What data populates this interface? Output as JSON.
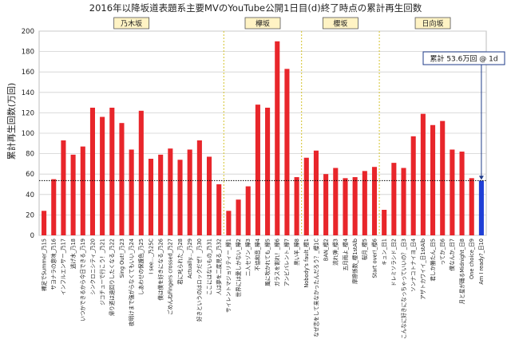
{
  "chart_data": {
    "type": "bar",
    "title": "2016年以降坂道表題系主要MVのYouTube公開1日目(d)終了時点の累計再生回数",
    "ylabel": "累計再生回数(万回)",
    "ylim": [
      0,
      200
    ],
    "yticks": [
      0,
      20,
      40,
      60,
      80,
      100,
      120,
      140,
      160,
      180,
      200
    ],
    "grid": true,
    "categories": [
      "裸足でSummer_乃15",
      "サヨナラの意味_乃16",
      "インフルエンサー_乃17",
      "逃げ水_乃18",
      "いつかできるから今日できる_乃19",
      "シンクロニシティ_乃20",
      "ジコチューで行こう！_乃21",
      "帰り道は遠回りしたくなる_乃22",
      "Sing Out!_乃23",
      "夜明けまで強がらなくてもいい_乃24",
      "しあわせの保護色_乃25",
      "I see..._乃25C",
      "僕は僕を好きになる_乃26",
      "ごめんねFingers crossed_乃27",
      "君に叱られた_乃28",
      "Actually..._乃29",
      "好きというのはロックだぜ！_乃30",
      "ここにはないもの_乃31",
      "人は夢を二度見る_乃32",
      "サイレントマジョリティー_欅1",
      "世界には愛しかない_欅2",
      "二人セゾン_欅3",
      "不協和音_欅4",
      "風に吹かれても_欅5",
      "ガラスを割れ！_欅6",
      "アンビバレント_欅7",
      "黒い羊_欅8",
      "Nobody's fault_櫻1",
      "なぜ恋をして来なかったんだろう？_櫻1C",
      "BAN_櫻2",
      "流れ弾_櫻3",
      "五月雨よ_櫻4",
      "摩擦係数_櫻1stAlb",
      "桜月_櫻5",
      "Start over!_櫻6",
      "キュン_日1",
      "ドレミソラシド_日2",
      "こんなに好きになっちゃっていいの？_日3",
      "ソンナコトナイヨ_日4",
      "アザトカワイイ_日1stAlb",
      "君しか勝たん_日5",
      "ってか_日6",
      "僕なんか_日7",
      "月と星が踊るMidnight_日8",
      "One choice_日9",
      "Am I ready?_日10"
    ],
    "values": [
      24,
      55,
      93,
      79,
      87,
      125,
      116,
      125,
      110,
      84,
      122,
      75,
      79,
      85,
      74,
      84,
      93,
      77,
      50,
      24,
      35,
      48,
      128,
      125,
      190,
      163,
      57,
      76,
      83,
      60,
      66,
      56,
      57,
      63,
      67,
      25,
      71,
      66,
      97,
      119,
      108,
      112,
      84,
      82,
      56,
      53.6
    ],
    "highlight_index": 45,
    "colors": {
      "bar": "#e8262b",
      "highlight": "#1f3fd6",
      "reference_line": "#000000",
      "divider": "#d4c22a",
      "callout_border": "#1f3b8a"
    },
    "groups": [
      {
        "name": "乃木坂",
        "count": 19
      },
      {
        "name": "欅坂",
        "count": 8
      },
      {
        "name": "櫻坂",
        "count": 8
      },
      {
        "name": "日向坂",
        "count": 11
      }
    ],
    "reference_line": {
      "value": 53.6,
      "style": "dotted"
    },
    "annotation": "累計 53.6万回 @ 1d"
  }
}
